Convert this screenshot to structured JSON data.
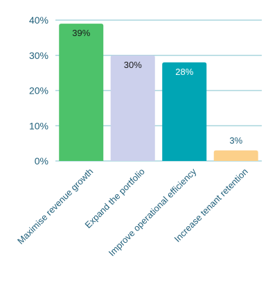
{
  "chart_data": {
    "type": "bar",
    "categories": [
      "Maximise revenue growth",
      "Expand the portfolio",
      "Improve operational efficiency",
      "Increase tenant retention"
    ],
    "values": [
      39,
      30,
      28,
      3
    ],
    "value_labels": [
      "39%",
      "30%",
      "28%",
      "3%"
    ],
    "bar_colors": [
      "#4dc26a",
      "#ccd0ec",
      "#00a5b4",
      "#fcd08a"
    ],
    "y_ticks": [
      0,
      10,
      20,
      30,
      40
    ],
    "y_tick_labels": [
      "0%",
      "10%",
      "20%",
      "30%",
      "40%"
    ],
    "ylim": [
      0,
      40
    ],
    "grid": true,
    "title": "",
    "xlabel": "",
    "ylabel": ""
  }
}
